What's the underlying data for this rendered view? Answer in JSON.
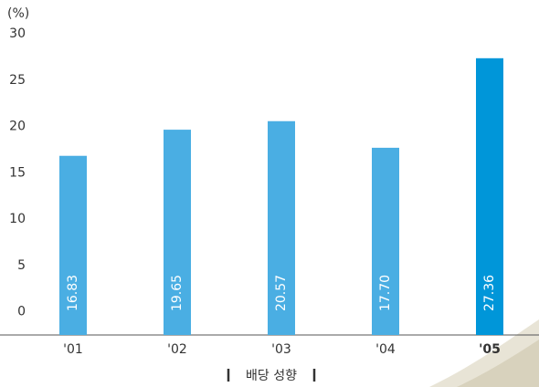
{
  "chart_data": {
    "type": "bar",
    "title": "배당 성향",
    "y_unit": "(%)",
    "categories": [
      "'01",
      "'02",
      "'03",
      "'04",
      "'05"
    ],
    "values": [
      16.83,
      19.65,
      20.57,
      17.7,
      27.36
    ],
    "value_labels": [
      "16.83",
      "19.65",
      "20.57",
      "17.70",
      "27.36"
    ],
    "colors": [
      "#4aaee3",
      "#4aaee3",
      "#4aaee3",
      "#4aaee3",
      "#0096d9"
    ],
    "ylim": [
      -2.5,
      30
    ],
    "yticks": [
      0,
      5,
      10,
      15,
      20,
      25,
      30
    ]
  }
}
